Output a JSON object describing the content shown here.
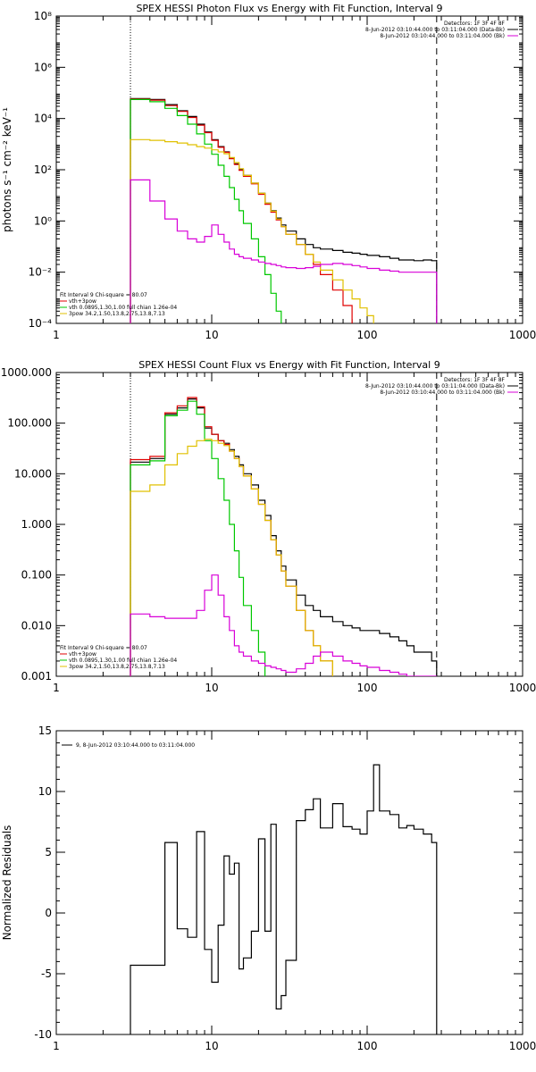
{
  "chart_data": [
    {
      "type": "line",
      "title": "SPEX HESSI Photon Flux vs Energy with Fit Function, Interval 9",
      "xlabel": "",
      "ylabel": "photons s⁻¹ cm⁻² keV⁻¹",
      "xscale": "log",
      "yscale": "log",
      "xlim": [
        1,
        1000
      ],
      "ylim": [
        0.0001,
        100000000
      ],
      "x_ticks": [
        1,
        10,
        100,
        1000
      ],
      "x_tick_labels": [
        "1",
        "10",
        "100",
        "1000"
      ],
      "y_ticks": [
        0.0001,
        0.01,
        1,
        100,
        10000,
        1000000,
        100000000
      ],
      "y_tick_labels": [
        "10⁻⁴",
        "10⁻²",
        "10⁰",
        "10²",
        "10⁴",
        "10⁶",
        "10⁸"
      ],
      "vlines": [
        {
          "x": 3,
          "style": "dotted"
        },
        {
          "x": 280,
          "style": "dashed"
        }
      ],
      "legend_top_right": [
        {
          "text": "Detectors: 1F 3F 4F 8F",
          "color": "#000000"
        },
        {
          "text": "8-Jun-2012 03:10:44.000 to 03:11:04.000 (Data-Bk)",
          "color": "#000000"
        },
        {
          "text": "8-Jun-2012 03:10:44.000 to 03:11:04.000 (Bk)",
          "color": "#d800d8"
        }
      ],
      "legend_bottom_left": [
        {
          "text": "Fit Interval 9   Chi-square = 80.07",
          "color": "#000000"
        },
        {
          "text": "vth+3pow",
          "color": "#e00000"
        },
        {
          "text": "vth 0.0895,1.30,1.00  full chian 1.26e-04",
          "color": "#00c800"
        },
        {
          "text": "3pow 34.2,1.50,13.8,2.75,13.8,7.13",
          "color": "#e0c000"
        }
      ],
      "series": [
        {
          "name": "Data-Bk",
          "color": "#000000",
          "x": [
            3,
            4,
            5,
            6,
            7,
            8,
            9,
            10,
            11,
            12,
            13,
            14,
            15,
            16,
            18,
            20,
            22,
            24,
            26,
            28,
            30,
            35,
            40,
            45,
            50,
            60,
            70,
            80,
            90,
            100,
            120,
            140,
            160,
            180,
            200,
            230,
            260,
            280
          ],
          "y": [
            60000,
            55000,
            35000,
            20000,
            12000,
            6000,
            3000,
            1500,
            800,
            500,
            280,
            170,
            100,
            60,
            30,
            12,
            5,
            2.5,
            1.3,
            0.7,
            0.4,
            0.2,
            0.12,
            0.09,
            0.08,
            0.07,
            0.06,
            0.055,
            0.05,
            0.045,
            0.04,
            0.035,
            0.03,
            0.03,
            0.028,
            0.03,
            0.028,
            0.03
          ]
        },
        {
          "name": "vth+3pow",
          "color": "#e00000",
          "x": [
            3,
            4,
            5,
            6,
            7,
            8,
            9,
            10,
            11,
            12,
            13,
            14,
            15,
            16,
            18,
            20,
            22,
            24,
            26,
            28,
            30,
            35,
            40,
            45,
            50,
            60,
            70,
            80
          ],
          "y": [
            58000,
            52000,
            32000,
            19000,
            11000,
            5500,
            2800,
            1400,
            750,
            480,
            270,
            160,
            95,
            55,
            28,
            11,
            4.5,
            2.2,
            1.1,
            0.6,
            0.3,
            0.12,
            0.05,
            0.02,
            0.008,
            0.002,
            0.0005,
            0.0001
          ]
        },
        {
          "name": "vth",
          "color": "#00c800",
          "x": [
            3,
            4,
            5,
            6,
            7,
            8,
            9,
            10,
            11,
            12,
            13,
            14,
            15,
            16,
            18,
            20,
            22,
            24,
            26,
            28
          ],
          "y": [
            55000,
            45000,
            25000,
            13000,
            6000,
            2500,
            1000,
            400,
            150,
            55,
            20,
            7,
            2.5,
            0.8,
            0.2,
            0.04,
            0.008,
            0.0015,
            0.0003,
            0.0001
          ]
        },
        {
          "name": "3pow",
          "color": "#e0c000",
          "x": [
            3,
            4,
            5,
            6,
            7,
            8,
            9,
            10,
            11,
            12,
            13,
            14,
            15,
            16,
            18,
            20,
            22,
            24,
            26,
            28,
            30,
            35,
            40,
            45,
            50,
            60,
            70,
            80,
            90,
            100,
            110
          ],
          "y": [
            1500,
            1400,
            1250,
            1100,
            950,
            800,
            700,
            600,
            500,
            420,
            300,
            190,
            110,
            60,
            30,
            12,
            5,
            2.4,
            1.2,
            0.6,
            0.3,
            0.12,
            0.05,
            0.025,
            0.012,
            0.005,
            0.002,
            0.0009,
            0.0004,
            0.0002,
            0.0001
          ]
        },
        {
          "name": "Bk",
          "color": "#d800d8",
          "x": [
            3,
            4,
            5,
            6,
            7,
            8,
            9,
            10,
            11,
            12,
            13,
            14,
            15,
            16,
            18,
            20,
            22,
            24,
            26,
            28,
            30,
            35,
            40,
            45,
            50,
            60,
            70,
            80,
            90,
            100,
            120,
            140,
            160,
            180,
            200,
            230,
            260,
            280
          ],
          "y": [
            40,
            6,
            1.2,
            0.4,
            0.2,
            0.15,
            0.25,
            0.7,
            0.3,
            0.15,
            0.08,
            0.05,
            0.04,
            0.035,
            0.03,
            0.025,
            0.022,
            0.02,
            0.018,
            0.016,
            0.015,
            0.014,
            0.015,
            0.017,
            0.02,
            0.022,
            0.02,
            0.018,
            0.016,
            0.014,
            0.012,
            0.011,
            0.01,
            0.01,
            0.01,
            0.01,
            0.01,
            0.01
          ]
        }
      ]
    },
    {
      "type": "line",
      "title": "SPEX HESSI Count Flux vs Energy with Fit Function, Interval 9",
      "xlabel": "",
      "ylabel": "",
      "xscale": "log",
      "yscale": "log",
      "xlim": [
        1,
        1000
      ],
      "ylim": [
        0.001,
        1000
      ],
      "x_ticks": [
        1,
        10,
        100,
        1000
      ],
      "x_tick_labels": [
        "1",
        "10",
        "100",
        "1000"
      ],
      "y_ticks": [
        0.001,
        0.01,
        0.1,
        1,
        10,
        100,
        1000
      ],
      "y_tick_labels": [
        "0.001",
        "0.010",
        "0.100",
        "1.000",
        "10.000",
        "100.000",
        "1000.000"
      ],
      "vlines": [
        {
          "x": 3,
          "style": "dotted"
        },
        {
          "x": 280,
          "style": "dashed"
        }
      ],
      "legend_top_right": [
        {
          "text": "Detectors: 1F 3F 4F 8F",
          "color": "#000000"
        },
        {
          "text": "8-Jun-2012 03:10:44.000 to 03:11:04.000 (Data-Bk)",
          "color": "#000000"
        },
        {
          "text": "8-Jun-2012 03:10:44.000 to 03:11:04.000 (Bk)",
          "color": "#d800d8"
        }
      ],
      "legend_bottom_left": [
        {
          "text": "Fit Interval 9   Chi-square = 80.07",
          "color": "#000000"
        },
        {
          "text": "vth+3pow",
          "color": "#e00000"
        },
        {
          "text": "vth 0.0895,1.30,1.00  full chian 1.26e-04",
          "color": "#00c800"
        },
        {
          "text": "3pow 34.2,1.50,13.8,2.75,13.8,7.13",
          "color": "#e0c000"
        }
      ],
      "series": [
        {
          "name": "Data-Bk",
          "color": "#000000",
          "x": [
            3,
            4,
            5,
            6,
            7,
            8,
            9,
            10,
            11,
            12,
            13,
            14,
            15,
            16,
            18,
            20,
            22,
            24,
            26,
            28,
            30,
            35,
            40,
            45,
            50,
            60,
            70,
            80,
            90,
            100,
            120,
            140,
            160,
            180,
            200,
            230,
            260,
            280
          ],
          "y": [
            17,
            20,
            150,
            200,
            300,
            200,
            80,
            60,
            45,
            40,
            30,
            22,
            15,
            10,
            6,
            3,
            1.5,
            0.6,
            0.3,
            0.15,
            0.08,
            0.04,
            0.025,
            0.02,
            0.015,
            0.012,
            0.01,
            0.009,
            0.008,
            0.008,
            0.007,
            0.006,
            0.005,
            0.004,
            0.003,
            0.003,
            0.002,
            0.0015
          ]
        },
        {
          "name": "vth+3pow",
          "color": "#e00000",
          "x": [
            3,
            4,
            5,
            6,
            7,
            8,
            9,
            10,
            11,
            12,
            13,
            14,
            15,
            16,
            18,
            20,
            22,
            24,
            26,
            28,
            30,
            35,
            40,
            45,
            50,
            60
          ],
          "y": [
            19,
            22,
            160,
            220,
            320,
            210,
            85,
            60,
            45,
            38,
            28,
            20,
            14,
            9,
            5,
            2.5,
            1.2,
            0.5,
            0.25,
            0.12,
            0.06,
            0.02,
            0.008,
            0.004,
            0.002,
            0.001
          ]
        },
        {
          "name": "vth",
          "color": "#00c800",
          "x": [
            3,
            4,
            5,
            6,
            7,
            8,
            9,
            10,
            11,
            12,
            13,
            14,
            15,
            16,
            18,
            20,
            22
          ],
          "y": [
            15,
            18,
            140,
            180,
            270,
            150,
            45,
            20,
            8,
            3,
            1,
            0.3,
            0.09,
            0.025,
            0.008,
            0.003,
            0.001
          ]
        },
        {
          "name": "3pow",
          "color": "#e0c000",
          "x": [
            3,
            4,
            5,
            6,
            7,
            8,
            9,
            10,
            11,
            12,
            13,
            14,
            15,
            16,
            18,
            20,
            22,
            24,
            26,
            28,
            30,
            35,
            40,
            45,
            50,
            60
          ],
          "y": [
            4.5,
            6,
            15,
            25,
            35,
            45,
            48,
            45,
            40,
            36,
            28,
            20,
            14,
            9,
            5,
            2.5,
            1.2,
            0.5,
            0.25,
            0.12,
            0.06,
            0.02,
            0.008,
            0.004,
            0.002,
            0.001
          ]
        },
        {
          "name": "Bk",
          "color": "#d800d8",
          "x": [
            3,
            4,
            5,
            6,
            7,
            8,
            9,
            10,
            11,
            12,
            13,
            14,
            15,
            16,
            18,
            20,
            22,
            24,
            26,
            28,
            30,
            35,
            40,
            45,
            50,
            60,
            70,
            80,
            90,
            100,
            120,
            140,
            160,
            180,
            200,
            230,
            260,
            280
          ],
          "y": [
            0.017,
            0.015,
            0.014,
            0.014,
            0.014,
            0.02,
            0.05,
            0.1,
            0.04,
            0.015,
            0.008,
            0.004,
            0.003,
            0.0025,
            0.002,
            0.0018,
            0.0016,
            0.0015,
            0.0014,
            0.0013,
            0.0012,
            0.0014,
            0.0018,
            0.0025,
            0.003,
            0.0025,
            0.002,
            0.0018,
            0.0016,
            0.0015,
            0.0013,
            0.0012,
            0.0011,
            0.001,
            0.001,
            0.001,
            0.001,
            0.001
          ]
        }
      ]
    },
    {
      "type": "line",
      "title": "",
      "xlabel": "",
      "ylabel": "Normalized Residuals",
      "xscale": "log",
      "yscale": "linear",
      "xlim": [
        1,
        1000
      ],
      "ylim": [
        -10,
        15
      ],
      "x_ticks": [
        1,
        10,
        100,
        1000
      ],
      "x_tick_labels": [
        "1",
        "10",
        "100",
        "1000"
      ],
      "y_ticks": [
        -10,
        -5,
        0,
        5,
        10,
        15
      ],
      "y_tick_labels": [
        "-10",
        "-5",
        "0",
        "5",
        "10",
        "15"
      ],
      "legend_top_left": [
        {
          "text": "9,  8-Jun-2012 03:10:44.000 to 03:11:04.000",
          "color": "#000000"
        }
      ],
      "series": [
        {
          "name": "",
          "color": "#000000",
          "x": [
            3,
            4,
            5,
            6,
            7,
            8,
            9,
            10,
            11,
            12,
            13,
            14,
            15,
            16,
            18,
            20,
            22,
            24,
            26,
            28,
            30,
            35,
            40,
            45,
            50,
            60,
            70,
            80,
            90,
            100,
            110,
            120,
            140,
            160,
            180,
            200,
            230,
            260,
            280
          ],
          "y": [
            -4.3,
            -4.3,
            5.8,
            -1.3,
            -2,
            6.7,
            -3,
            -5.7,
            -1,
            4.7,
            3.2,
            4.1,
            -4.6,
            -3.7,
            -1.5,
            6.1,
            -1.5,
            7.3,
            -7.9,
            -6.8,
            -3.9,
            7.6,
            8.5,
            9.4,
            7,
            9,
            7.1,
            6.9,
            6.5,
            8.4,
            12.2,
            8.4,
            8.1,
            7.0,
            7.2,
            6.9,
            6.5,
            5.8,
            5.8
          ]
        }
      ]
    }
  ]
}
